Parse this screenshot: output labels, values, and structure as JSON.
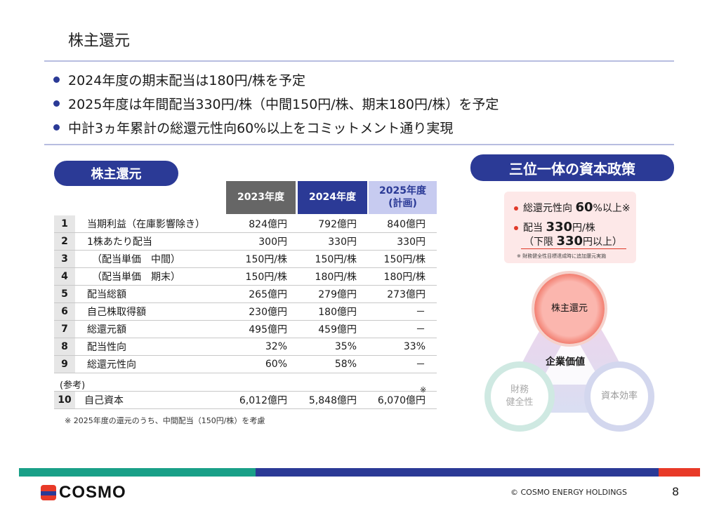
{
  "title": "株主還元",
  "bullets": [
    "2024年度の期末配当は180円/株を予定",
    "2025年度は年間配当330円/株（中間150円/株、期末180円/株）を予定",
    "中計3ヵ年累計の総還元性向60%以上をコミットメント通り実現"
  ],
  "left_pill": "株主還元",
  "right_pill": "三位一体の資本政策",
  "table": {
    "headers": [
      "2023年度",
      "2024年度",
      "2025年度\n(計画)"
    ],
    "rows": [
      {
        "num": "1",
        "label": "当期利益（在庫影響除き）",
        "v": [
          "824億円",
          "792億円",
          "840億円"
        ]
      },
      {
        "num": "2",
        "label": "1株あたり配当",
        "v": [
          "300円",
          "330円",
          "330円"
        ]
      },
      {
        "num": "3",
        "label": "　（配当単価　中間）",
        "v": [
          "150円/株",
          "150円/株",
          "150円/株"
        ]
      },
      {
        "num": "4",
        "label": "　（配当単価　期末）",
        "v": [
          "150円/株",
          "180円/株",
          "180円/株"
        ]
      },
      {
        "num": "5",
        "label": "配当総額",
        "v": [
          "265億円",
          "279億円",
          "273億円"
        ]
      },
      {
        "num": "6",
        "label": "自己株取得額",
        "v": [
          "230億円",
          "180億円",
          "－"
        ]
      },
      {
        "num": "7",
        "label": "総還元額",
        "v": [
          "495億円",
          "459億円",
          "－"
        ]
      },
      {
        "num": "8",
        "label": "配当性向",
        "v": [
          "32%",
          "35%",
          "33%"
        ]
      },
      {
        "num": "9",
        "label": "総還元性向",
        "v": [
          "60%",
          "58%",
          "－"
        ]
      }
    ],
    "ref_label": "(参考)",
    "row10": {
      "num": "10",
      "label": "自己資本",
      "v": [
        "6,012億円",
        "5,848億円",
        "6,070億円"
      ]
    },
    "kome": "※",
    "footnote": "※ 2025年度の還元のうち、中間配当（150円/株）を考慮"
  },
  "policy": {
    "line1_a": "総還元性向 ",
    "line1_b": "60",
    "line1_c": "%以上※",
    "line2_a": "配当 ",
    "line2_b": "330",
    "line2_c": "円/株",
    "line3_a": "（下限 ",
    "line3_b": "330",
    "line3_c": "円以上）",
    "note": "※ 財務健全性目標達成時に追加還元実施"
  },
  "circles": {
    "top": "株主還元",
    "left": "財務\n健全性",
    "right": "資本効率",
    "center": "企業価値"
  },
  "footer": {
    "logo": "COSMO",
    "copyright": "© COSMO ENERGY HOLDINGS",
    "page": "8"
  }
}
